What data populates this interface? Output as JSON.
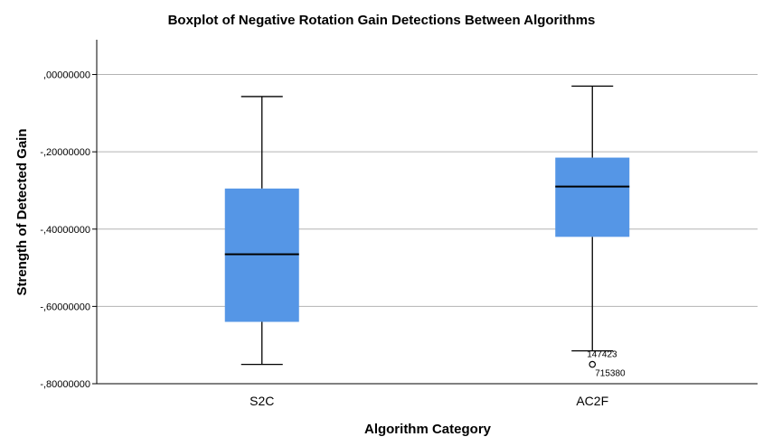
{
  "chart_data": {
    "type": "boxplot",
    "title": "Boxplot of Negative Rotation Gain Detections Between Algorithms",
    "xlabel": "Algorithm Category",
    "ylabel": "Strength of Detected Gain",
    "ylim": [
      -0.8,
      0.09
    ],
    "yticks": [
      {
        "value": 0.0,
        "label": ",00000000"
      },
      {
        "value": -0.2,
        "label": "-,20000000"
      },
      {
        "value": -0.4,
        "label": "-,40000000"
      },
      {
        "value": -0.6,
        "label": "-,60000000"
      },
      {
        "value": -0.8,
        "label": "-,80000000"
      }
    ],
    "grid": true,
    "box_color": "#5596e6",
    "categories": [
      "S2C",
      "AC2F"
    ],
    "boxes": [
      {
        "name": "S2C",
        "whisker_low": -0.75,
        "q1": -0.64,
        "median": -0.465,
        "q3": -0.295,
        "whisker_high": -0.057,
        "outliers": []
      },
      {
        "name": "AC2F",
        "whisker_low": -0.715,
        "q1": -0.42,
        "median": -0.29,
        "q3": -0.215,
        "whisker_high": -0.03,
        "outliers": [
          {
            "value": -0.75,
            "labels": [
              "147423",
              "715380"
            ]
          }
        ]
      }
    ]
  }
}
